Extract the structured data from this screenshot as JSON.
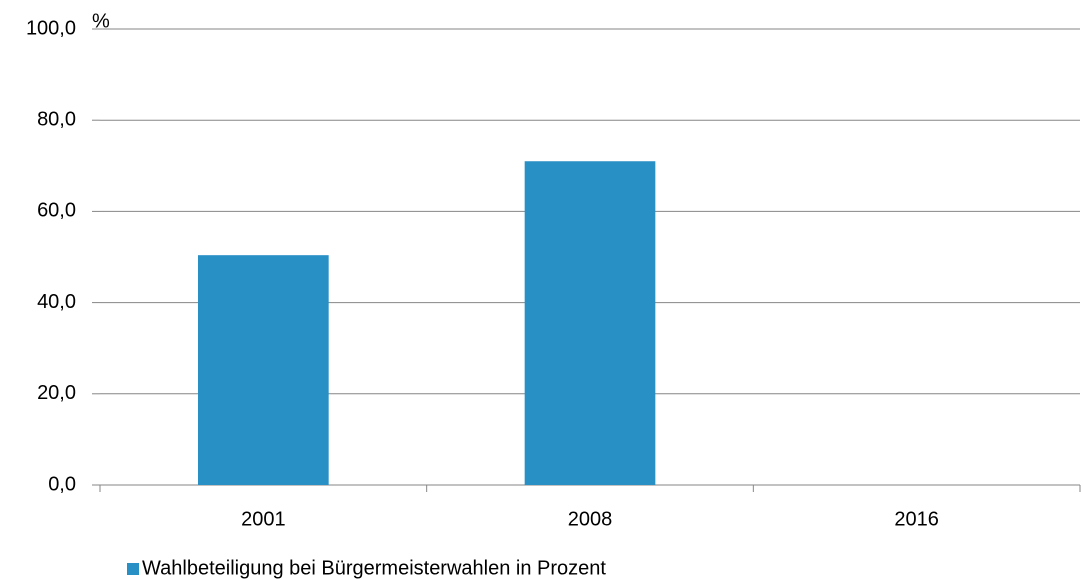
{
  "chart_data": {
    "type": "bar",
    "categories": [
      "2001",
      "2008",
      "2016"
    ],
    "series": [
      {
        "name": "Wahlbeteiligung bei Bürgermeisterwahlen in Prozent",
        "color": "#2990c6",
        "values": [
          50.4,
          71.0,
          null
        ]
      }
    ],
    "y_unit": "%",
    "ylim": [
      0,
      100
    ],
    "yticks": [
      {
        "value": 0,
        "label": "0,0"
      },
      {
        "value": 20,
        "label": "20,0"
      },
      {
        "value": 40,
        "label": "40,0"
      },
      {
        "value": 60,
        "label": "60,0"
      },
      {
        "value": 80,
        "label": "80,0"
      },
      {
        "value": 100,
        "label": "100,0"
      }
    ],
    "grid": true,
    "legend": "bottom-left"
  }
}
